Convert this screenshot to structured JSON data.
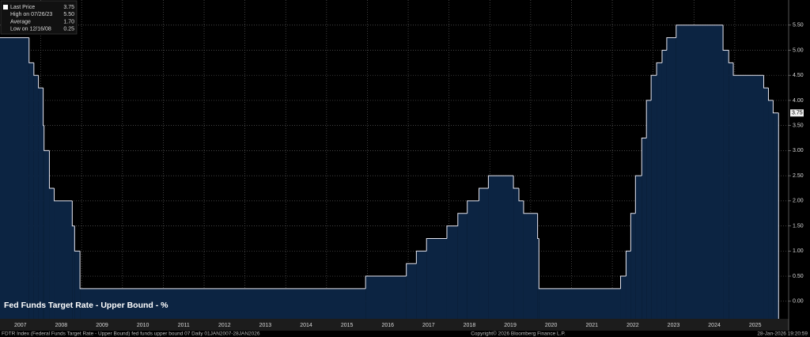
{
  "chart_data": {
    "type": "step-area",
    "title": "Fed Funds Target Rate - Upper Bound - %",
    "legend": [
      {
        "label": "Last Price",
        "value": 3.75
      },
      {
        "label": "High on 07/26/23",
        "value": {
          "value": 5.5,
          "label": "5.50"
        }
      },
      {
        "label": "Average",
        "value": {
          "value": 1.7,
          "label": "1.70"
        }
      },
      {
        "label": "Low on 12/16/08",
        "value": 0.25
      }
    ],
    "footer": [
      "FDTR Index (Federal Funds Target Rate - Upper Bound) fed funds upper bound 07 Daily 01JAN2007-28JAN2026",
      "Copyright© 2026 Bloomberg Finance L.P.",
      "28-Jan-2026 19:20:59"
    ],
    "color": "#0c2442",
    "line_color": "#e6e6f0",
    "x": [
      2007.0,
      2007.712,
      2007.83,
      2007.942,
      2008.058,
      2008.079,
      2008.21,
      2008.328,
      2008.77,
      2008.828,
      2008.959,
      2015.956,
      2016.954,
      2017.2,
      2017.449,
      2017.948,
      2018.216,
      2018.447,
      2018.734,
      2018.964,
      2019.578,
      2019.712,
      2019.827,
      2020.17,
      2020.203,
      2022.203,
      2022.337,
      2022.452,
      2022.567,
      2022.721,
      2022.836,
      2022.951,
      2023.085,
      2023.219,
      2023.334,
      2023.564,
      2024.713,
      2024.852,
      2024.964,
      2025.71,
      2025.825,
      2025.94,
      2026.074
    ],
    "values": [
      5.25,
      4.75,
      4.5,
      4.25,
      3.5,
      3.0,
      2.25,
      2.0,
      1.5,
      1.0,
      0.25,
      0.5,
      0.75,
      1.0,
      1.25,
      1.5,
      1.75,
      2.0,
      2.25,
      2.5,
      2.25,
      2.0,
      1.75,
      1.25,
      0.25,
      0.5,
      1.0,
      1.75,
      2.5,
      3.25,
      4.0,
      4.5,
      4.75,
      5.0,
      5.25,
      5.5,
      5.0,
      4.75,
      4.5,
      4.25,
      4.0,
      3.75,
      3.75
    ],
    "last_label": "3.75",
    "xlim": [
      2007,
      2026.32
    ],
    "xticks": [
      {
        "value": 2007.5,
        "label": "2007"
      },
      {
        "value": 2008.5,
        "label": "2008"
      },
      {
        "value": 2009.5,
        "label": "2009"
      },
      {
        "value": 2010.5,
        "label": "2010"
      },
      {
        "value": 2011.5,
        "label": "2011"
      },
      {
        "value": 2012.5,
        "label": "2012"
      },
      {
        "value": 2013.5,
        "label": "2013"
      },
      {
        "value": 2014.5,
        "label": "2014"
      },
      {
        "value": 2015.5,
        "label": "2015"
      },
      {
        "value": 2016.5,
        "label": "2016"
      },
      {
        "value": 2017.5,
        "label": "2017"
      },
      {
        "value": 2018.5,
        "label": "2018"
      },
      {
        "value": 2019.5,
        "label": "2019"
      },
      {
        "value": 2020.5,
        "label": "2020"
      },
      {
        "value": 2021.5,
        "label": "2021"
      },
      {
        "value": 2022.5,
        "label": "2022"
      },
      {
        "value": 2023.5,
        "label": "2023"
      },
      {
        "value": 2024.5,
        "label": "2024"
      },
      {
        "value": 2025.5,
        "label": "2025"
      }
    ],
    "ylim": [
      -0.35,
      6.0
    ],
    "yticks": [
      {
        "value": 0,
        "label": "0.00"
      },
      {
        "value": 0.5,
        "label": "0.50"
      },
      {
        "value": 1,
        "label": "1.00"
      },
      {
        "value": 1.5,
        "label": "1.50"
      },
      {
        "value": 2,
        "label": "2.00"
      },
      {
        "value": 2.5,
        "label": "2.50"
      },
      {
        "value": 3,
        "label": "3.00"
      },
      {
        "value": 3.5,
        "label": "3.50"
      },
      {
        "value": 4,
        "label": "4.00"
      },
      {
        "value": 4.5,
        "label": "4.50"
      },
      {
        "value": 5,
        "label": "5.00"
      },
      {
        "value": 5.5,
        "label": "5.50"
      }
    ],
    "grid": true
  }
}
